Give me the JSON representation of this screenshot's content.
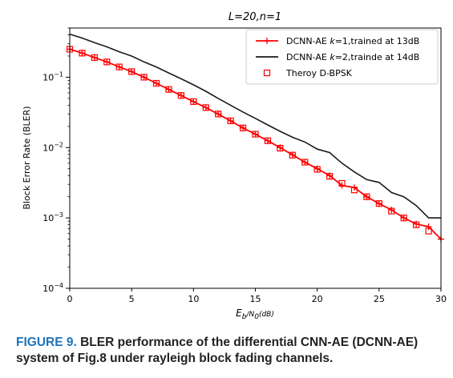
{
  "chart_data": {
    "type": "line",
    "title": "L=20,n=1",
    "xlabel": "E_b/N_0(dB)",
    "ylabel": "Block Error Rate (BLER)",
    "xlim": [
      0,
      30
    ],
    "ylim": [
      0.0001,
      0.5
    ],
    "yscale": "log",
    "grid": false,
    "legend_position": "top-right",
    "x_ticks": [
      "0",
      "5",
      "10",
      "15",
      "20",
      "25",
      "30"
    ],
    "y_ticks": [
      {
        "base": "10",
        "exp": "−1"
      },
      {
        "base": "10",
        "exp": "−2"
      },
      {
        "base": "10",
        "exp": "−3"
      },
      {
        "base": "10",
        "exp": "−4"
      }
    ],
    "series": [
      {
        "name": "DCNN-AE k=1,trained at 13dB",
        "color": "#ff0000",
        "marker": "plus",
        "x": [
          0,
          1,
          2,
          3,
          4,
          5,
          6,
          7,
          8,
          9,
          10,
          11,
          12,
          13,
          14,
          15,
          16,
          17,
          18,
          19,
          20,
          21,
          22,
          23,
          24,
          25,
          26,
          27,
          28,
          29,
          30
        ],
        "y": [
          0.25,
          0.22,
          0.19,
          0.165,
          0.14,
          0.12,
          0.1,
          0.082,
          0.067,
          0.055,
          0.045,
          0.037,
          0.03,
          0.024,
          0.019,
          0.0155,
          0.0125,
          0.01,
          0.0079,
          0.0062,
          0.005,
          0.004,
          0.0029,
          0.0027,
          0.002,
          0.0016,
          0.0013,
          0.001,
          0.00082,
          0.00075,
          0.0005
        ]
      },
      {
        "name": "DCNN-AE k=2,trainde at 14dB",
        "color": "#1a1a1a",
        "marker": "none",
        "x": [
          0,
          1,
          2,
          3,
          4,
          5,
          6,
          7,
          8,
          9,
          10,
          11,
          12,
          13,
          14,
          15,
          16,
          17,
          18,
          19,
          20,
          21,
          22,
          23,
          24,
          25,
          26,
          27,
          28,
          29,
          30
        ],
        "y": [
          0.41,
          0.36,
          0.31,
          0.27,
          0.23,
          0.2,
          0.165,
          0.14,
          0.115,
          0.095,
          0.078,
          0.063,
          0.05,
          0.04,
          0.032,
          0.026,
          0.021,
          0.017,
          0.014,
          0.012,
          0.0095,
          0.0085,
          0.006,
          0.0045,
          0.0035,
          0.0032,
          0.0023,
          0.002,
          0.0015,
          0.001,
          0.001
        ]
      },
      {
        "name": "Theroy D-BPSK",
        "color": "#ff0000",
        "marker": "square-open",
        "x": [
          0,
          1,
          2,
          3,
          4,
          5,
          6,
          7,
          8,
          9,
          10,
          11,
          12,
          13,
          14,
          15,
          16,
          17,
          18,
          19,
          20,
          21,
          22,
          23,
          24,
          25,
          26,
          27,
          28,
          29
        ],
        "y": [
          0.25,
          0.22,
          0.19,
          0.165,
          0.14,
          0.12,
          0.1,
          0.082,
          0.067,
          0.055,
          0.045,
          0.037,
          0.03,
          0.024,
          0.019,
          0.0155,
          0.0125,
          0.0098,
          0.0078,
          0.0062,
          0.0049,
          0.0039,
          0.0031,
          0.0025,
          0.002,
          0.0016,
          0.00125,
          0.001,
          0.0008,
          0.00065
        ]
      }
    ]
  },
  "caption": {
    "label": "FIGURE 9.",
    "text": "BLER performance of the differential CNN-AE (DCNN-AE) system of Fig.8 under rayleigh block fading channels."
  }
}
